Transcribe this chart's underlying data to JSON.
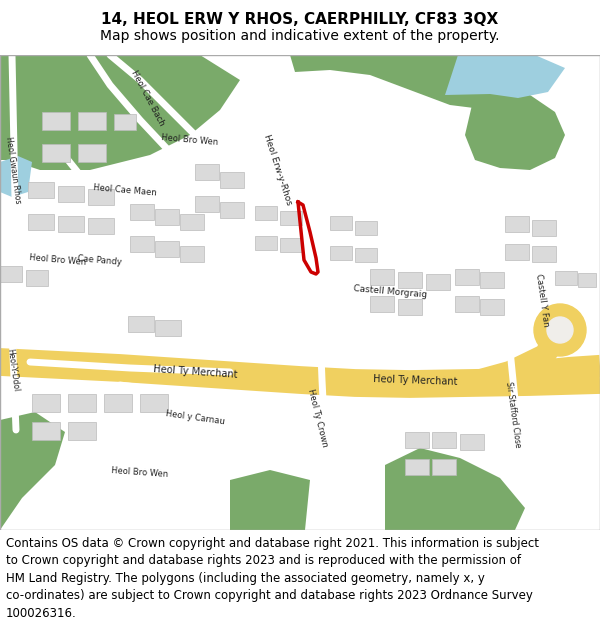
{
  "title_line1": "14, HEOL ERW Y RHOS, CAERPHILLY, CF83 3QX",
  "title_line2": "Map shows position and indicative extent of the property.",
  "title_fontsize": 11,
  "subtitle_fontsize": 10,
  "footer_lines": [
    "Contains OS data © Crown copyright and database right 2021. This information is subject",
    "to Crown copyright and database rights 2023 and is reproduced with the permission of",
    "HM Land Registry. The polygons (including the associated geometry, namely x, y",
    "co-ordinates) are subject to Crown copyright and database rights 2023 Ordnance Survey",
    "100026316."
  ],
  "footer_fontsize": 8.5,
  "fig_width": 6.0,
  "fig_height": 6.25,
  "map_bg": "#f0eeea",
  "road_yellow": "#f0d060",
  "road_white": "#ffffff",
  "green_area": "#7aaa6a",
  "water_blue": "#9ecfdf",
  "building_gray": "#dadada",
  "building_outline": "#bbbbbb",
  "red_outline": "#cc0000",
  "title_bg": "#ffffff",
  "footer_bg": "#ffffff"
}
